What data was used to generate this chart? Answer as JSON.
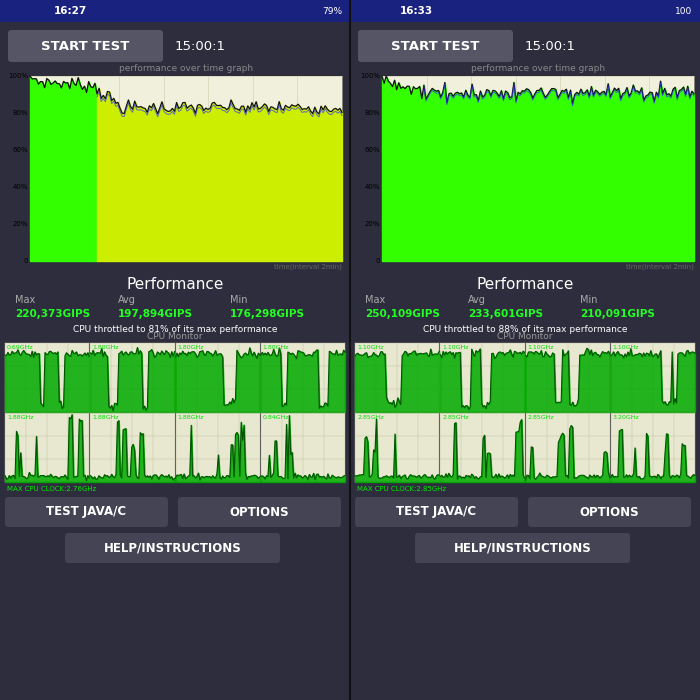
{
  "bg_dark": "#222233",
  "panel_bg": "#2d2d3d",
  "status_bar_color": "#1a2280",
  "button_color": "#444455",
  "white": "#ffffff",
  "light_gray": "#bbbbbb",
  "chart_bg": "#f0f0dc",
  "chart_bg2": "#e8e8d0",
  "grid_color": "#ccccaa",
  "green_fill": "#33ff00",
  "yellow_fill": "#ccee00",
  "cpu_line_color": "#005500",
  "cpu_fill_color": "#00aa00",
  "perf_line_color": "#111111",
  "blue_line_color": "#3333ff",
  "left_time": "16:27",
  "right_time": "16:33",
  "left_battery": "79%",
  "right_battery": "100",
  "start_test_label": "START TEST",
  "timer_label": "15:00:1",
  "perf_graph_title": "performance over time graph",
  "perf_xlabel": "time(interval 2min)",
  "left_performance_title": "Performance",
  "left_max_label": "Max",
  "left_avg_label": "Avg",
  "left_min_label": "Min",
  "left_max_val": "220,373GIPS",
  "left_avg_val": "197,894GIPS",
  "left_min_val": "176,298GIPS",
  "left_throttle": "CPU throttled to 81% of its max performance",
  "right_performance_title": "Performance",
  "right_max_label": "Max",
  "right_avg_label": "Avg",
  "right_min_label": "Min",
  "right_max_val": "250,109GIPS",
  "right_avg_val": "233,601GIPS",
  "right_min_val": "210,091GIPS",
  "right_throttle": "CPU throttled to 88% of its max performance",
  "cpu_monitor_title": "CPU Monitor",
  "left_cpu_top_freqs": [
    "0.69GHz",
    "1.80GHz",
    "1.80GHz",
    "1.80GHz"
  ],
  "left_cpu_bot_freqs": [
    "1.88GHz",
    "1.88GHz",
    "1.88GHz",
    "0.84GHz"
  ],
  "left_max_cpu_clock": "MAX CPU CLOCK:2.76GHz",
  "right_cpu_top_freqs": [
    "1.10GHz",
    "1.10GHz",
    "1.10GHz",
    "1.10GHz"
  ],
  "right_cpu_bot_freqs": [
    "2.85GHz",
    "2.85GHz",
    "2.85GHz",
    "3.20GHz"
  ],
  "right_max_cpu_clock": "MAX CPU CLOCK:2.85GHz",
  "left_btn1": "TEST JAVA/C",
  "left_btn2": "OPTIONS",
  "left_btn3": "HELP/INSTRUCTIONS",
  "right_btn1": "TEST JAVA/C",
  "right_btn2": "OPTIONS",
  "right_btn3": "HELP/INSTRUCTIONS"
}
